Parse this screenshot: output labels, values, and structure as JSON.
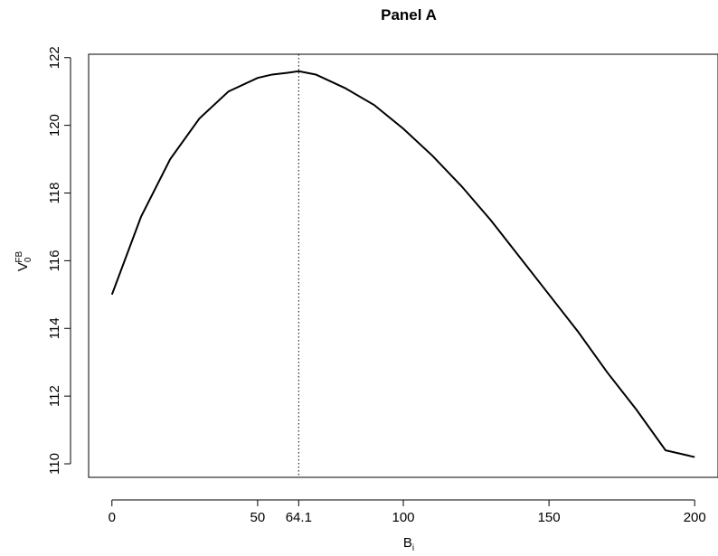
{
  "chart_data": {
    "type": "line",
    "title": "Panel A",
    "xlabel": {
      "main": "B",
      "subscript": "i"
    },
    "ylabel": {
      "main": "V",
      "subscript": "0",
      "superscript": "FB"
    },
    "xlim": [
      -8,
      208
    ],
    "ylim": [
      109.6,
      122.1
    ],
    "x_ticks": [
      0,
      50,
      64.1,
      100,
      150,
      200
    ],
    "x_tick_labels": [
      "0",
      "50",
      "64.1",
      "100",
      "150",
      "200"
    ],
    "y_ticks": [
      110,
      112,
      114,
      116,
      118,
      120,
      122
    ],
    "y_tick_labels": [
      "110",
      "112",
      "114",
      "116",
      "118",
      "120",
      "122"
    ],
    "vertical_line": {
      "x": 64.1,
      "style": "dotted"
    },
    "grid": false,
    "series": [
      {
        "x": [
          0,
          10,
          20,
          30,
          40,
          50,
          55,
          60,
          64.1,
          70,
          80,
          90,
          100,
          110,
          120,
          130,
          140,
          150,
          160,
          170,
          180,
          190,
          200
        ],
        "y": [
          115.0,
          117.3,
          119.0,
          120.2,
          121.0,
          121.4,
          121.5,
          121.55,
          121.6,
          121.5,
          121.1,
          120.6,
          119.9,
          119.1,
          118.2,
          117.2,
          116.1,
          115.0,
          113.9,
          112.7,
          111.6,
          110.4,
          110.2
        ]
      }
    ]
  }
}
